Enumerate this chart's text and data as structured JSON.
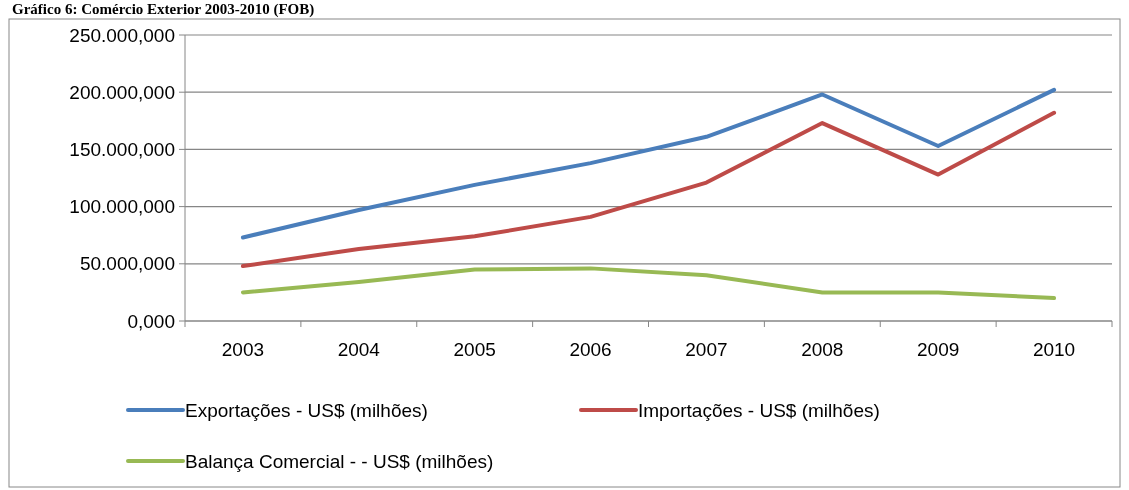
{
  "chart_data": {
    "type": "line",
    "title": "Gráfico 6: Comércio Exterior 2003-2010 (FOB)",
    "categories": [
      "2003",
      "2004",
      "2005",
      "2006",
      "2007",
      "2008",
      "2009",
      "2010"
    ],
    "series": [
      {
        "name": "Exportações - US$ (milhões)",
        "color": "#4a7ebb",
        "values": [
          73000,
          97000,
          119000,
          138000,
          161000,
          198000,
          153000,
          202000
        ]
      },
      {
        "name": "Importações  - US$ (milhões)",
        "color": "#be4b48",
        "values": [
          48000,
          63000,
          74000,
          91000,
          121000,
          173000,
          128000,
          182000
        ]
      },
      {
        "name": "Balança Comercial -  - US$ (milhões)",
        "color": "#98b954",
        "values": [
          25000,
          34000,
          45000,
          46000,
          40000,
          25000,
          25000,
          20000
        ]
      }
    ],
    "ylim": [
      0,
      250000
    ],
    "yticks": [
      {
        "value": 0,
        "label": "0,000"
      },
      {
        "value": 50000,
        "label": "50.000,000"
      },
      {
        "value": 100000,
        "label": "100.000,000"
      },
      {
        "value": 150000,
        "label": "150.000,000"
      },
      {
        "value": 200000,
        "label": "200.000,000"
      },
      {
        "value": 250000,
        "label": "250.000,000"
      }
    ],
    "grid": "y",
    "legend": "bottom",
    "marker": "none",
    "line_style": "solid"
  }
}
